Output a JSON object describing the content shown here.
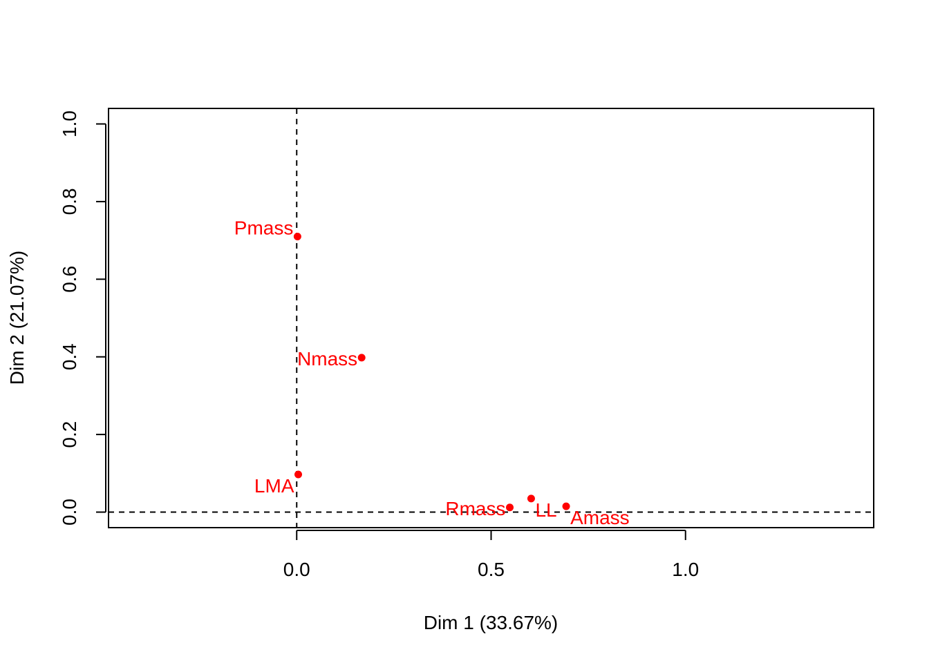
{
  "chart_data": {
    "type": "scatter",
    "xlabel": "Dim 1 (33.67%)",
    "ylabel": "Dim 2 (21.07%)",
    "xlim": [
      -0.484,
      1.484
    ],
    "ylim": [
      -0.04,
      1.04
    ],
    "x_ticks": [
      {
        "value": 0.0,
        "label": "0.0"
      },
      {
        "value": 0.5,
        "label": "0.5"
      },
      {
        "value": 1.0,
        "label": "1.0"
      }
    ],
    "y_ticks": [
      {
        "value": 0.0,
        "label": "0.0"
      },
      {
        "value": 0.2,
        "label": "0.2"
      },
      {
        "value": 0.4,
        "label": "0.4"
      },
      {
        "value": 0.6,
        "label": "0.6"
      },
      {
        "value": 0.8,
        "label": "0.8"
      },
      {
        "value": 1.0,
        "label": "1.0"
      }
    ],
    "reference_lines": {
      "x": 0,
      "y": 0,
      "style": "dashed"
    },
    "grid": false,
    "point_color": "#ff0000",
    "points": [
      {
        "label": "Pmass",
        "x": 0.002,
        "y": 0.71,
        "label_pos": "upper-left"
      },
      {
        "label": "Nmass",
        "x": 0.167,
        "y": 0.398,
        "label_pos": "left"
      },
      {
        "label": "LMA",
        "x": 0.004,
        "y": 0.097,
        "label_pos": "lower-left"
      },
      {
        "label": "Rmass",
        "x": 0.548,
        "y": 0.012,
        "label_pos": "left"
      },
      {
        "label": "LL",
        "x": 0.603,
        "y": 0.035,
        "label_pos": "lower-right"
      },
      {
        "label": "Amass",
        "x": 0.693,
        "y": 0.015,
        "label_pos": "lower-right"
      }
    ]
  }
}
